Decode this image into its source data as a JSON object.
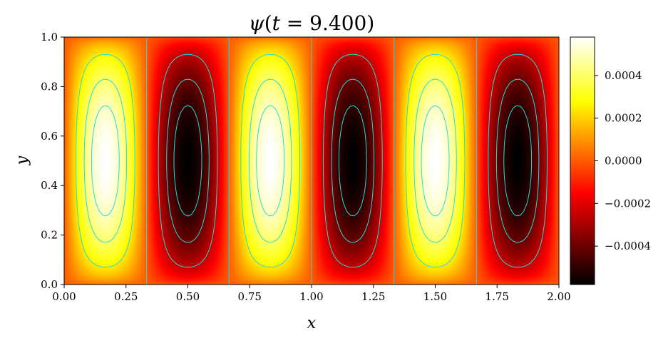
{
  "chart_data": {
    "type": "heatmap",
    "title": "ψ(t = 9.400)",
    "title_parts": {
      "symbol": "ψ",
      "open": "(",
      "var": "t",
      "rest": " = 9.400)"
    },
    "xlabel": "x",
    "ylabel": "y",
    "xlim": [
      0.0,
      2.0
    ],
    "ylim": [
      0.0,
      1.0
    ],
    "x_ticks": [
      0.0,
      0.25,
      0.5,
      0.75,
      1.0,
      1.25,
      1.5,
      1.75,
      2.0
    ],
    "x_tick_labels": [
      "0.00",
      "0.25",
      "0.50",
      "0.75",
      "1.00",
      "1.25",
      "1.50",
      "1.75",
      "2.00"
    ],
    "y_ticks": [
      0.0,
      0.2,
      0.4,
      0.6,
      0.8,
      1.0
    ],
    "y_tick_labels": [
      "0.0",
      "0.2",
      "0.4",
      "0.6",
      "0.8",
      "1.0"
    ],
    "field": {
      "description": "psi = A * sin(3*pi*x) * sin(pi*y) style cellular pattern, 6 cells alternating sign",
      "cells": 6,
      "amplitude": 0.00058,
      "first_cell_sign": 1
    },
    "colormap": "hot",
    "color_range": [
      -0.00058,
      0.00058
    ],
    "colorbar": {
      "ticks": [
        -0.0004,
        -0.0002,
        0.0,
        0.0002,
        0.0004
      ],
      "tick_labels": [
        "−0.0004",
        "−0.0002",
        "0.0000",
        "0.0002",
        "0.0004"
      ]
    },
    "contour_levels": [
      -0.0005,
      -0.0004,
      -0.00025,
      0.0,
      0.00025,
      0.0004,
      0.0005
    ],
    "contour_color": "#22dddd"
  }
}
